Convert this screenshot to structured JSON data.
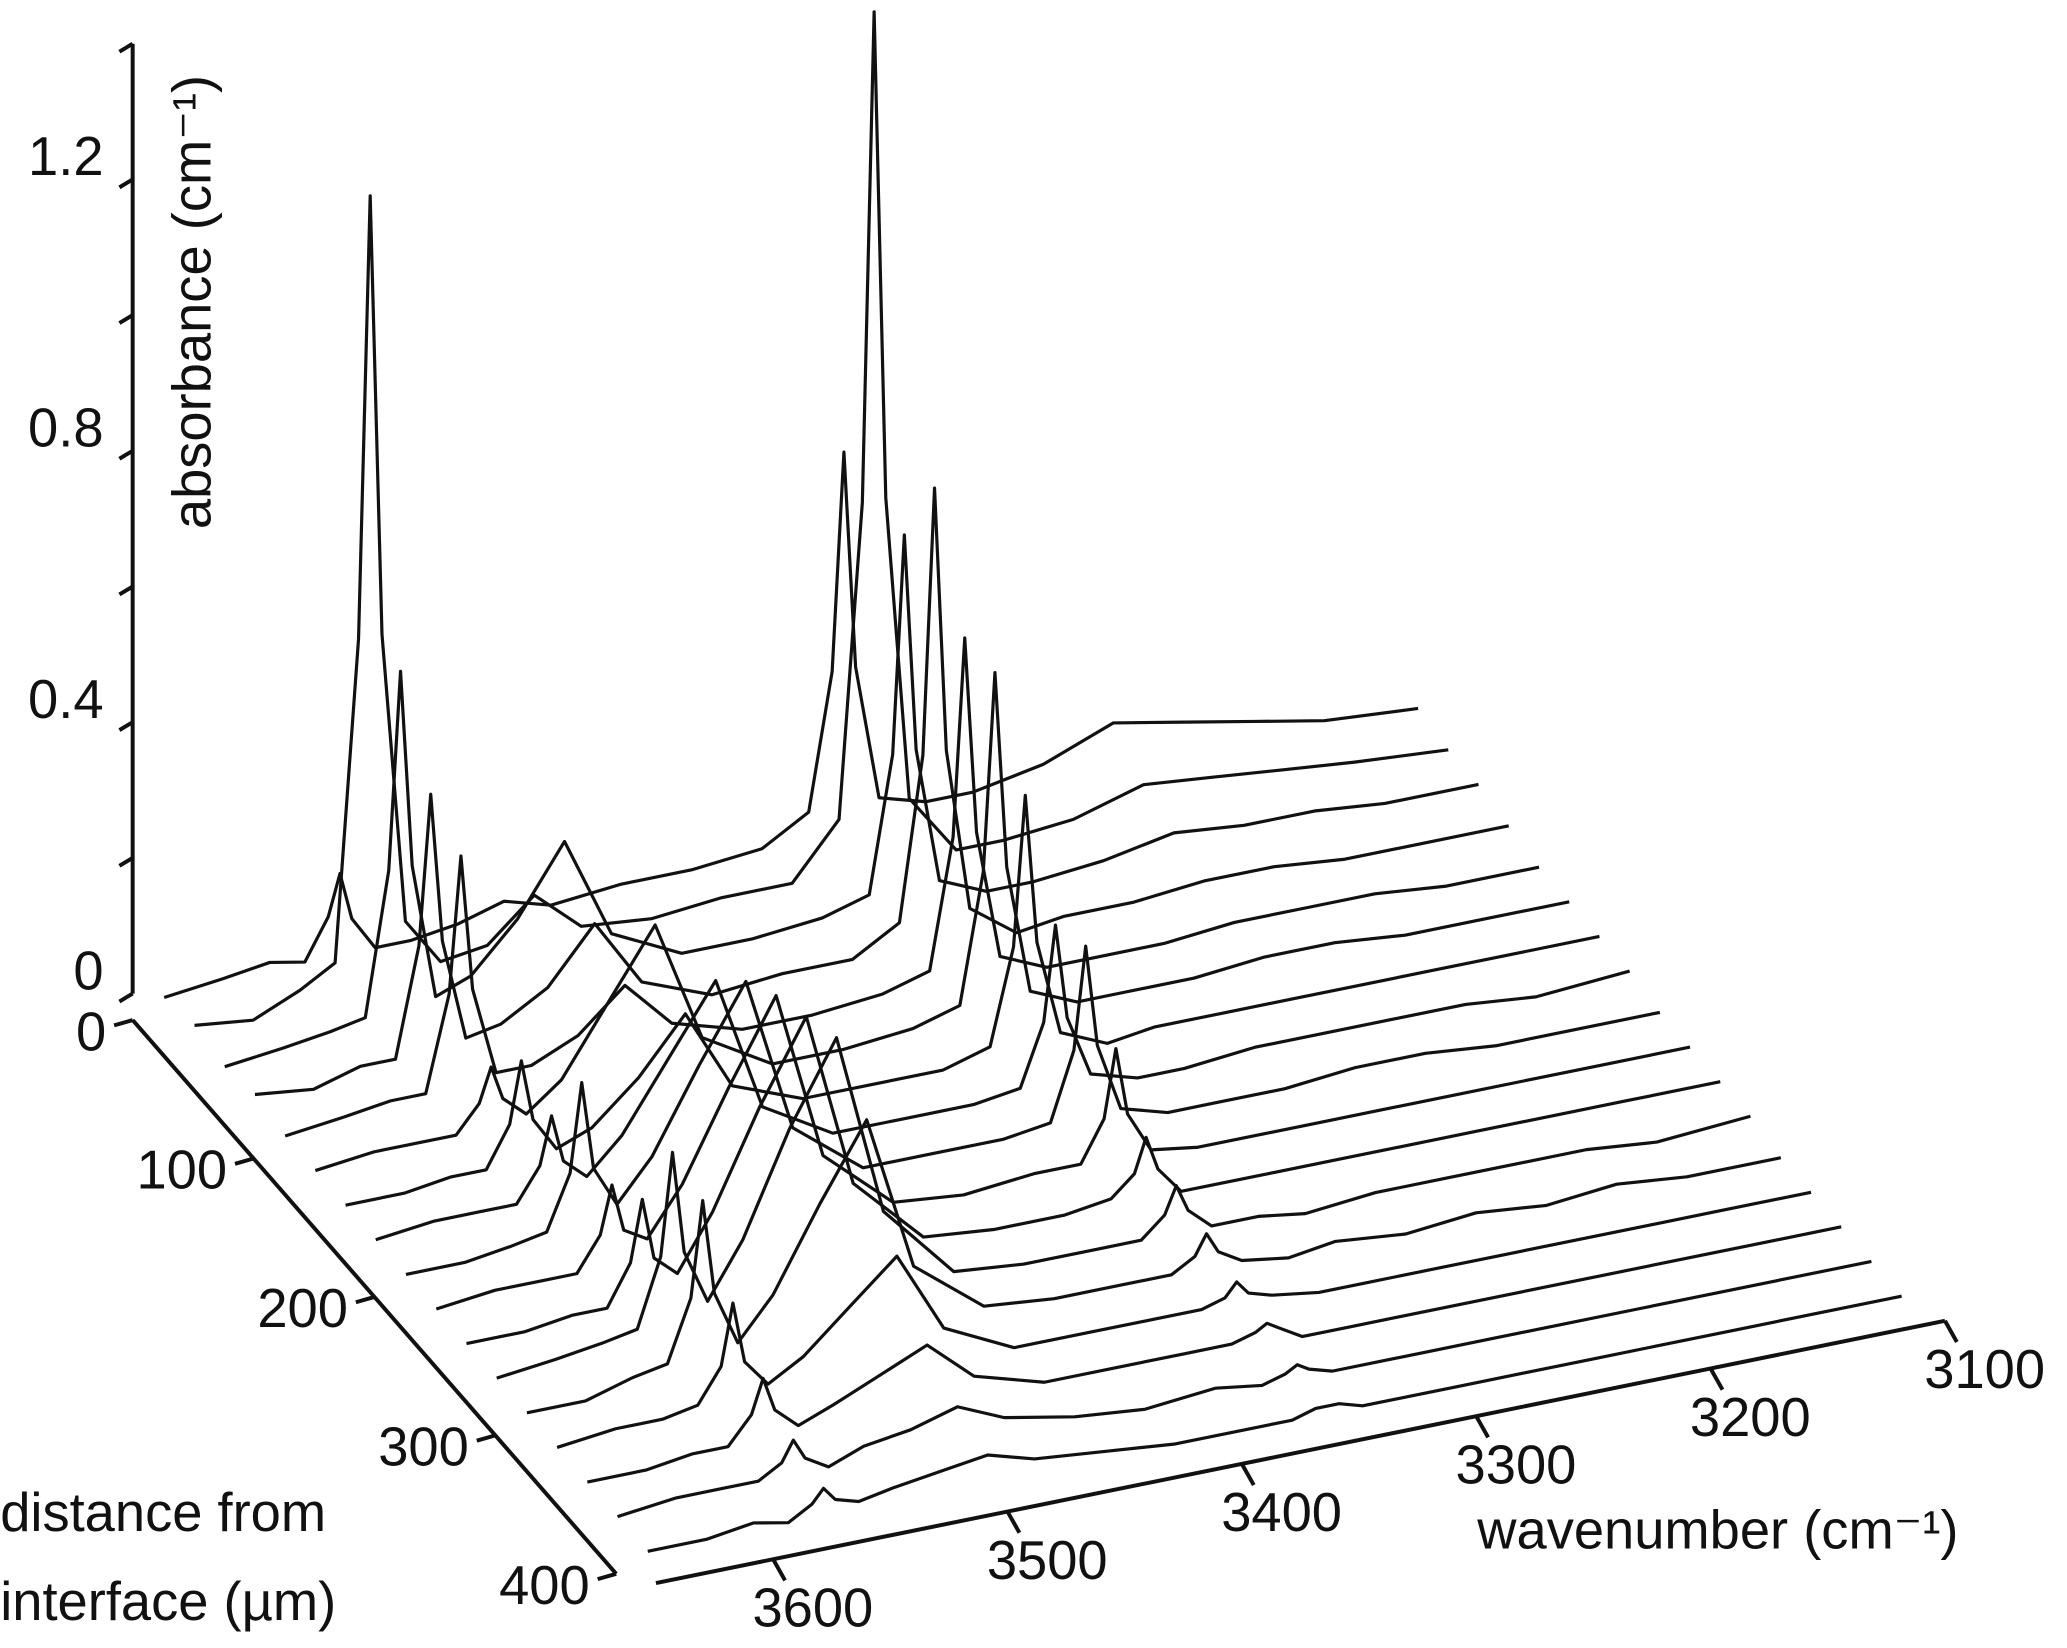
{
  "chart_data": {
    "type": "waterfall",
    "x_label": "wavenumber (cm⁻¹)",
    "y_label": "absorbance (cm⁻¹)",
    "z_label": [
      "distance from",
      "interface (µm)"
    ],
    "color": "#111111",
    "xlim": [
      3650,
      3100
    ],
    "xticks": [
      3600,
      3500,
      3400,
      3300,
      3200,
      3100
    ],
    "ylim": [
      0,
      1.4
    ],
    "yticks": [
      0,
      0.4,
      0.8,
      1.2
    ],
    "yminorticks": [
      0.2,
      0.6,
      1.0,
      1.4
    ],
    "zlim": [
      0,
      400
    ],
    "zticks": [
      0,
      100,
      200,
      300,
      400
    ],
    "z": [
      0,
      25,
      50,
      75,
      100,
      125,
      150,
      175,
      200,
      225,
      250,
      275,
      300,
      325,
      350,
      375,
      400
    ],
    "x": [
      3645,
      3620,
      3600,
      3585,
      3575,
      3570,
      3565,
      3555,
      3540,
      3520,
      3500,
      3480,
      3450,
      3420,
      3390,
      3370,
      3360,
      3355,
      3350,
      3340,
      3320,
      3300,
      3270,
      3240,
      3210,
      3180,
      3150,
      3110
    ],
    "series": [
      {
        "values": [
          0.02,
          0.03,
          0.04,
          0.03,
          0.09,
          0.15,
          0.08,
          0.03,
          0.03,
          0.04,
          0.06,
          0.04,
          0.05,
          0.05,
          0.06,
          0.1,
          0.3,
          0.62,
          0.3,
          0.1,
          0.08,
          0.08,
          0.1,
          0.14,
          0.12,
          0.1,
          0.08,
          0.07
        ]
      },
      {
        "values": [
          0.03,
          0.02,
          0.05,
          0.08,
          0.55,
          1.2,
          0.55,
          0.12,
          0.05,
          0.06,
          0.12,
          0.06,
          0.05,
          0.06,
          0.06,
          0.14,
          0.6,
          1.32,
          0.6,
          0.15,
          0.06,
          0.06,
          0.07,
          0.1,
          0.09,
          0.08,
          0.07,
          0.06
        ]
      },
      {
        "values": [
          0.02,
          0.03,
          0.04,
          0.05,
          0.26,
          0.55,
          0.26,
          0.06,
          0.08,
          0.15,
          0.25,
          0.1,
          0.05,
          0.05,
          0.06,
          0.08,
          0.28,
          0.6,
          0.28,
          0.08,
          0.05,
          0.05,
          0.06,
          0.08,
          0.07,
          0.07,
          0.06,
          0.06
        ]
      },
      {
        "values": [
          0.03,
          0.02,
          0.04,
          0.04,
          0.2,
          0.42,
          0.2,
          0.05,
          0.06,
          0.1,
          0.18,
          0.08,
          0.04,
          0.05,
          0.05,
          0.09,
          0.33,
          0.72,
          0.33,
          0.09,
          0.04,
          0.05,
          0.05,
          0.06,
          0.06,
          0.05,
          0.05,
          0.05
        ]
      },
      {
        "values": [
          0.02,
          0.03,
          0.04,
          0.04,
          0.18,
          0.38,
          0.18,
          0.05,
          0.05,
          0.08,
          0.14,
          0.07,
          0.04,
          0.04,
          0.05,
          0.07,
          0.26,
          0.55,
          0.26,
          0.07,
          0.04,
          0.04,
          0.04,
          0.05,
          0.05,
          0.05,
          0.04,
          0.04
        ]
      },
      {
        "values": [
          0.02,
          0.03,
          0.03,
          0.03,
          0.07,
          0.12,
          0.07,
          0.04,
          0.08,
          0.18,
          0.28,
          0.1,
          0.04,
          0.04,
          0.05,
          0.07,
          0.26,
          0.55,
          0.26,
          0.07,
          0.04,
          0.04,
          0.04,
          0.05,
          0.05,
          0.04,
          0.04,
          0.04
        ]
      },
      {
        "values": [
          0.02,
          0.02,
          0.03,
          0.03,
          0.09,
          0.18,
          0.09,
          0.04,
          0.06,
          0.12,
          0.2,
          0.08,
          0.04,
          0.04,
          0.04,
          0.06,
          0.2,
          0.42,
          0.2,
          0.06,
          0.03,
          0.04,
          0.04,
          0.04,
          0.04,
          0.04,
          0.04,
          0.04
        ]
      },
      {
        "values": [
          0.02,
          0.03,
          0.03,
          0.03,
          0.08,
          0.15,
          0.08,
          0.05,
          0.1,
          0.2,
          0.3,
          0.1,
          0.04,
          0.04,
          0.04,
          0.05,
          0.14,
          0.28,
          0.14,
          0.05,
          0.03,
          0.03,
          0.04,
          0.04,
          0.04,
          0.04,
          0.03,
          0.04
        ]
      },
      {
        "values": [
          0.02,
          0.02,
          0.03,
          0.04,
          0.12,
          0.25,
          0.12,
          0.06,
          0.12,
          0.24,
          0.35,
          0.12,
          0.04,
          0.04,
          0.04,
          0.05,
          0.15,
          0.3,
          0.15,
          0.05,
          0.03,
          0.03,
          0.03,
          0.04,
          0.04,
          0.03,
          0.03,
          0.03
        ]
      },
      {
        "values": [
          0.02,
          0.03,
          0.03,
          0.03,
          0.08,
          0.15,
          0.08,
          0.06,
          0.13,
          0.26,
          0.38,
          0.13,
          0.04,
          0.03,
          0.04,
          0.04,
          0.1,
          0.2,
          0.1,
          0.04,
          0.03,
          0.03,
          0.03,
          0.03,
          0.03,
          0.03,
          0.03,
          0.03
        ]
      },
      {
        "values": [
          0.02,
          0.02,
          0.03,
          0.03,
          0.09,
          0.18,
          0.09,
          0.06,
          0.14,
          0.28,
          0.4,
          0.14,
          0.04,
          0.03,
          0.03,
          0.04,
          0.07,
          0.12,
          0.07,
          0.03,
          0.03,
          0.03,
          0.03,
          0.03,
          0.03,
          0.03,
          0.03,
          0.03
        ]
      },
      {
        "values": [
          0.02,
          0.03,
          0.04,
          0.05,
          0.15,
          0.3,
          0.15,
          0.07,
          0.15,
          0.3,
          0.42,
          0.15,
          0.04,
          0.03,
          0.03,
          0.03,
          0.06,
          0.1,
          0.06,
          0.03,
          0.03,
          0.02,
          0.03,
          0.03,
          0.03,
          0.03,
          0.02,
          0.03
        ]
      },
      {
        "values": [
          0.02,
          0.02,
          0.04,
          0.05,
          0.14,
          0.28,
          0.14,
          0.06,
          0.12,
          0.24,
          0.35,
          0.12,
          0.04,
          0.03,
          0.03,
          0.03,
          0.05,
          0.08,
          0.05,
          0.03,
          0.02,
          0.03,
          0.02,
          0.03,
          0.02,
          0.03,
          0.02,
          0.02
        ]
      },
      {
        "values": [
          0.02,
          0.03,
          0.03,
          0.04,
          0.09,
          0.18,
          0.09,
          0.05,
          0.08,
          0.14,
          0.2,
          0.08,
          0.03,
          0.03,
          0.03,
          0.03,
          0.04,
          0.06,
          0.04,
          0.03,
          0.02,
          0.02,
          0.02,
          0.02,
          0.02,
          0.02,
          0.02,
          0.02
        ]
      },
      {
        "values": [
          0.02,
          0.02,
          0.03,
          0.03,
          0.07,
          0.12,
          0.07,
          0.04,
          0.06,
          0.09,
          0.12,
          0.06,
          0.03,
          0.03,
          0.03,
          0.03,
          0.04,
          0.05,
          0.04,
          0.02,
          0.02,
          0.02,
          0.02,
          0.02,
          0.02,
          0.02,
          0.02,
          0.02
        ]
      },
      {
        "values": [
          0.02,
          0.03,
          0.03,
          0.03,
          0.05,
          0.08,
          0.05,
          0.03,
          0.05,
          0.06,
          0.08,
          0.05,
          0.03,
          0.02,
          0.03,
          0.02,
          0.03,
          0.04,
          0.03,
          0.02,
          0.02,
          0.02,
          0.02,
          0.02,
          0.02,
          0.02,
          0.02,
          0.02
        ]
      },
      {
        "values": [
          0.02,
          0.02,
          0.03,
          0.02,
          0.04,
          0.06,
          0.04,
          0.03,
          0.04,
          0.05,
          0.06,
          0.04,
          0.03,
          0.02,
          0.02,
          0.02,
          0.03,
          0.03,
          0.03,
          0.02,
          0.02,
          0.02,
          0.02,
          0.02,
          0.02,
          0.02,
          0.02,
          0.02
        ]
      }
    ]
  }
}
